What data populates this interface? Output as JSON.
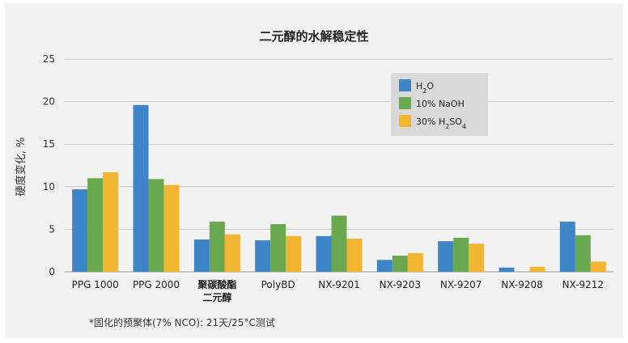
{
  "chart_data": {
    "type": "bar",
    "title": "二元醇的水解稳定性",
    "xlabel": "",
    "ylabel": "硬度变化, %",
    "ylim": [
      0,
      25
    ],
    "yticks": [
      "0",
      "5",
      "10",
      "15",
      "20",
      "25"
    ],
    "grid": true,
    "legend_position": "top-right",
    "categories": [
      "PPG 1000",
      "PPG 2000",
      "聚碳酸酯二元醇",
      "PolyBD",
      "NX-9201",
      "NX-9203",
      "NX-9207",
      "NX-9208",
      "NX-9212"
    ],
    "category_lines": [
      [
        "PPG 1000"
      ],
      [
        "PPG 2000"
      ],
      [
        "聚碳酸酯",
        "二元醇"
      ],
      [
        "PolyBD"
      ],
      [
        "NX-9201"
      ],
      [
        "NX-9203"
      ],
      [
        "NX-9207"
      ],
      [
        "NX-9208"
      ],
      [
        "NX-9212"
      ]
    ],
    "series": [
      {
        "name": "H₂O",
        "legend_parts": [
          {
            "t": "H"
          },
          {
            "t": "2",
            "sub": true
          },
          {
            "t": "O"
          }
        ],
        "color": "#3d85c6",
        "values": [
          9.7,
          19.6,
          3.8,
          3.7,
          4.2,
          1.4,
          3.6,
          0.5,
          5.9
        ]
      },
      {
        "name": "10% NaOH",
        "legend_parts": [
          {
            "t": "10% NaOH"
          }
        ],
        "color": "#6aa84f",
        "values": [
          11.0,
          10.9,
          5.9,
          5.6,
          6.6,
          1.9,
          4.0,
          0.0,
          4.3
        ]
      },
      {
        "name": "30% H₂SO₄",
        "legend_parts": [
          {
            "t": "30% H"
          },
          {
            "t": "2",
            "sub": true
          },
          {
            "t": "SO"
          },
          {
            "t": "4",
            "sub": true
          }
        ],
        "color": "#f1b532",
        "values": [
          11.7,
          10.2,
          4.4,
          4.2,
          3.9,
          2.2,
          3.3,
          0.6,
          1.2
        ]
      }
    ],
    "footnote": "*固化的预聚体(7% NCO): 21天/25°C测试"
  }
}
